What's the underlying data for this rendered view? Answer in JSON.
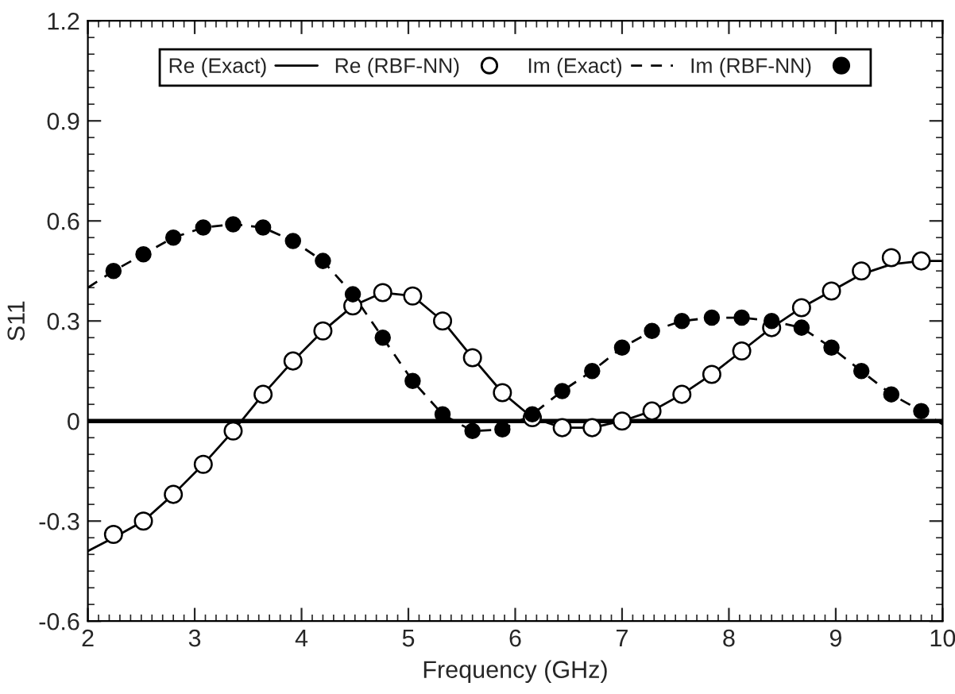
{
  "chart_data": {
    "type": "line",
    "xlabel": "Frequency (GHz)",
    "ylabel": "S11",
    "xlim": [
      2,
      10
    ],
    "ylim": [
      -0.6,
      1.2
    ],
    "xticks": [
      2,
      3,
      4,
      5,
      6,
      7,
      8,
      9,
      10
    ],
    "yticks": [
      {
        "value": -0.6,
        "label": "-0.6"
      },
      {
        "value": -0.3,
        "label": "-0.3"
      },
      0,
      0.3,
      0.6,
      0.9,
      1.2
    ],
    "legend": "top",
    "grid": false,
    "ref_lines": [
      {
        "axis": "y",
        "value": 0,
        "color": "#000000",
        "line_style": "solid"
      }
    ],
    "series": [
      {
        "name": "Re (Exact)",
        "line_style": "solid",
        "marker": "none",
        "color": "#000000",
        "x": [
          2,
          2.24,
          2.52,
          2.8,
          3.08,
          3.36,
          3.64,
          3.92,
          4.2,
          4.48,
          4.76,
          5.04,
          5.32,
          5.6,
          5.88,
          6.16,
          6.44,
          6.72,
          7.0,
          7.28,
          7.56,
          7.84,
          8.12,
          8.4,
          8.68,
          8.96,
          9.24,
          9.52,
          9.8,
          10
        ],
        "values": [
          -0.39,
          -0.35,
          -0.3,
          -0.22,
          -0.13,
          -0.03,
          0.08,
          0.18,
          0.27,
          0.345,
          0.385,
          0.375,
          0.3,
          0.19,
          0.085,
          0.01,
          -0.02,
          -0.02,
          0.0,
          0.03,
          0.08,
          0.14,
          0.21,
          0.28,
          0.34,
          0.39,
          0.44,
          0.47,
          0.48,
          0.48
        ]
      },
      {
        "name": "Re (RBF-NN)",
        "type": "scatter",
        "marker": "circle",
        "color": "#ffffff",
        "x": [
          2.24,
          2.52,
          2.8,
          3.08,
          3.36,
          3.64,
          3.92,
          4.2,
          4.48,
          4.76,
          5.04,
          5.32,
          5.6,
          5.88,
          6.16,
          6.44,
          6.72,
          7.0,
          7.28,
          7.56,
          7.84,
          8.12,
          8.4,
          8.68,
          8.96,
          9.24,
          9.52,
          9.8
        ],
        "values": [
          -0.34,
          -0.3,
          -0.22,
          -0.13,
          -0.03,
          0.08,
          0.18,
          0.27,
          0.345,
          0.385,
          0.375,
          0.3,
          0.19,
          0.085,
          0.01,
          -0.02,
          -0.02,
          0.0,
          0.03,
          0.08,
          0.14,
          0.21,
          0.28,
          0.34,
          0.39,
          0.45,
          0.49,
          0.48
        ]
      },
      {
        "name": "Im (Exact)",
        "line_style": "dashed",
        "marker": "none",
        "color": "#000000",
        "x": [
          2,
          2.24,
          2.52,
          2.8,
          3.08,
          3.36,
          3.64,
          3.92,
          4.2,
          4.48,
          4.76,
          5.04,
          5.32,
          5.6,
          5.88,
          6.16,
          6.44,
          6.72,
          7.0,
          7.28,
          7.56,
          7.84,
          8.12,
          8.4,
          8.68,
          8.96,
          9.24,
          9.52,
          9.8,
          10
        ],
        "values": [
          0.4,
          0.45,
          0.5,
          0.55,
          0.58,
          0.59,
          0.58,
          0.54,
          0.48,
          0.38,
          0.25,
          0.12,
          0.02,
          -0.03,
          -0.025,
          0.02,
          0.09,
          0.15,
          0.22,
          0.27,
          0.3,
          0.31,
          0.31,
          0.3,
          0.28,
          0.22,
          0.15,
          0.08,
          0.03,
          -0.01
        ]
      },
      {
        "name": "Im (RBF-NN)",
        "type": "scatter",
        "marker": "circle",
        "color": "#000000",
        "x": [
          2.24,
          2.52,
          2.8,
          3.08,
          3.36,
          3.64,
          3.92,
          4.2,
          4.48,
          4.76,
          5.04,
          5.32,
          5.6,
          5.88,
          6.16,
          6.44,
          6.72,
          7.0,
          7.28,
          7.56,
          7.84,
          8.12,
          8.4,
          8.68,
          8.96,
          9.24,
          9.52,
          9.8
        ],
        "values": [
          0.45,
          0.5,
          0.55,
          0.58,
          0.59,
          0.58,
          0.54,
          0.48,
          0.38,
          0.25,
          0.12,
          0.02,
          -0.03,
          -0.025,
          0.02,
          0.09,
          0.15,
          0.22,
          0.27,
          0.3,
          0.31,
          0.31,
          0.3,
          0.28,
          0.22,
          0.15,
          0.08,
          0.03
        ]
      }
    ]
  }
}
